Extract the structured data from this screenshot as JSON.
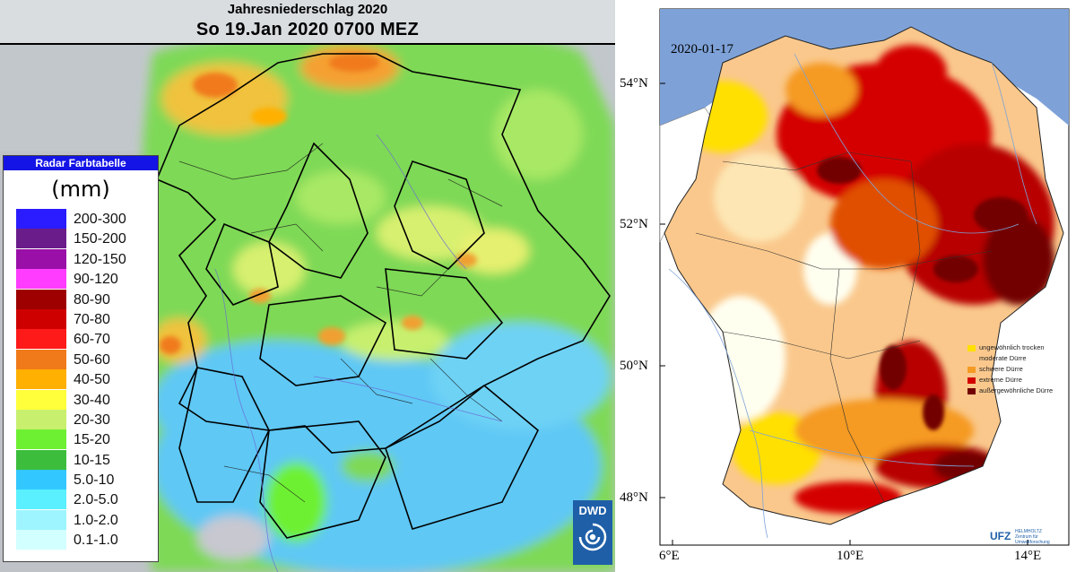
{
  "left_panel": {
    "title": "Jahresniederschlag 2020",
    "subtitle": "So 19.Jan 2020 0700 MEZ",
    "legend": {
      "header": "Radar Farbtabelle",
      "unit": "(mm)",
      "items": [
        {
          "label": "200-300",
          "color": "#2a1cff"
        },
        {
          "label": "150-200",
          "color": "#6a1d8a"
        },
        {
          "label": "120-150",
          "color": "#9a0fa8"
        },
        {
          "label": "90-120",
          "color": "#ff3cff"
        },
        {
          "label": "80-90",
          "color": "#9e0000"
        },
        {
          "label": "70-80",
          "color": "#cf0000"
        },
        {
          "label": "60-70",
          "color": "#ff1a1a"
        },
        {
          "label": "50-60",
          "color": "#f07a1a"
        },
        {
          "label": "40-50",
          "color": "#ffb000"
        },
        {
          "label": "30-40",
          "color": "#ffff3c"
        },
        {
          "label": "20-30",
          "color": "#c8f06e"
        },
        {
          "label": "15-20",
          "color": "#6ef032"
        },
        {
          "label": "10-15",
          "color": "#3cbe3c"
        },
        {
          "label": "5.0-10",
          "color": "#32c8ff"
        },
        {
          "label": "2.0-5.0",
          "color": "#5af0ff"
        },
        {
          "label": "1.0-2.0",
          "color": "#9ef5ff"
        },
        {
          "label": "0.1-1.0",
          "color": "#d2ffff"
        }
      ]
    },
    "logo_text": "DWD"
  },
  "right_panel": {
    "date": "2020-01-17",
    "lat_labels": [
      "54°N",
      "52°N",
      "50°N",
      "48°N"
    ],
    "lon_labels": [
      "6°E",
      "10°E",
      "14°E"
    ],
    "legend": [
      {
        "label": "ungewöhnlich trocken",
        "color": "#ffe000"
      },
      {
        "label": "moderate Dürre",
        "color": "#fac88c"
      },
      {
        "label": "schwere Dürre",
        "color": "#f59a23"
      },
      {
        "label": "extreme Dürre",
        "color": "#d40000"
      },
      {
        "label": "außergewöhnliche Dürre",
        "color": "#720000"
      }
    ],
    "logo": {
      "main": "UFZ",
      "sub1": "HELMHOLTZ",
      "sub2": "Zentrum für Umweltforschung"
    }
  }
}
